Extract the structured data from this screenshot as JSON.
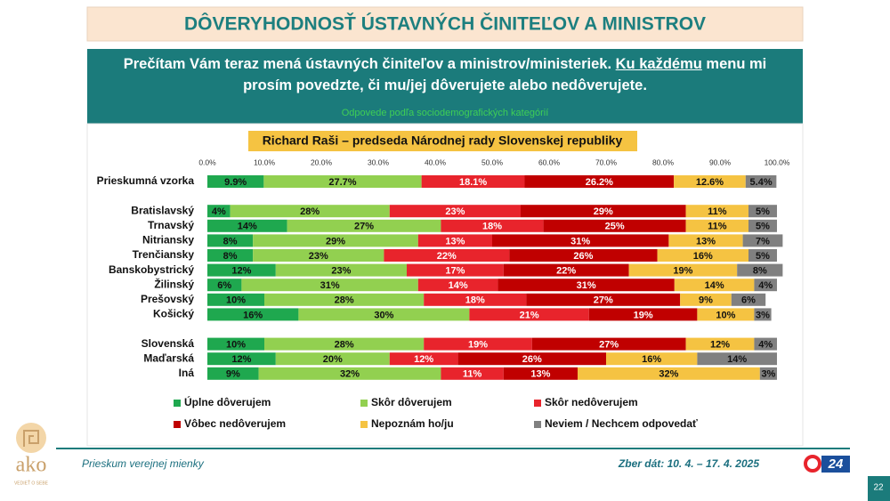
{
  "header": {
    "title": "DÔVERYHODNOSŤ ÚSTAVNÝCH ČINITEĽOV A MINISTROV"
  },
  "question": {
    "parts": [
      "Prečítam Vám teraz mená ústavných činiteľov a ministrov/ministeriek. ",
      "Ku každému",
      " menu mi prosím povedzte, či mu/jej dôverujete alebo nedôverujete."
    ]
  },
  "chart_data": {
    "type": "stacked-bar-horizontal",
    "subtitle": "Odpovede podľa sociodemografických kategórií",
    "title": "Richard Raši – predseda Národnej rady Slovenskej republiky",
    "categories": [
      "Prieskumná vzorka",
      null,
      "Bratislavský",
      "Trnavský",
      "Nitriansky",
      "Trenčiansky",
      "Banskobystrický",
      "Žilinský",
      "Prešovský",
      "Košický",
      null,
      "Slovenská",
      "Maďarská",
      "Iná"
    ],
    "xlim": [
      0,
      100
    ],
    "xticks": [
      {
        "value": 0,
        "label": "0.0%"
      },
      {
        "value": 10,
        "label": "10.0%"
      },
      {
        "value": 20,
        "label": "20.0%"
      },
      {
        "value": 30,
        "label": "30.0%"
      },
      {
        "value": 40,
        "label": "40.0%"
      },
      {
        "value": 50,
        "label": "50.0%"
      },
      {
        "value": 60,
        "label": "60.0%"
      },
      {
        "value": 70,
        "label": "70.0%"
      },
      {
        "value": 80,
        "label": "80.0%"
      },
      {
        "value": 90,
        "label": "90.0%"
      },
      {
        "value": 100,
        "label": "100.0%"
      }
    ],
    "series": [
      {
        "name": "Úplne dôverujem",
        "color": "#1fa84f",
        "values": [
          9.9,
          null,
          4,
          14,
          8,
          8,
          12,
          6,
          10,
          16,
          null,
          10,
          12,
          9
        ],
        "value_labels": [
          "9.9%",
          null,
          "4%",
          "14%",
          "8%",
          "8%",
          "12%",
          "6%",
          "10%",
          "16%",
          null,
          "10%",
          "12%",
          "9%"
        ]
      },
      {
        "name": "Skôr dôverujem",
        "color": "#92d050",
        "values": [
          27.7,
          null,
          28,
          27,
          29,
          23,
          23,
          31,
          28,
          30,
          null,
          28,
          20,
          32
        ],
        "value_labels": [
          "27.7%",
          null,
          "28%",
          "27%",
          "29%",
          "23%",
          "23%",
          "31%",
          "28%",
          "30%",
          null,
          "28%",
          "20%",
          "32%"
        ]
      },
      {
        "name": "Skôr nedôverujem",
        "color": "#e8242c",
        "values": [
          18.1,
          null,
          23,
          18,
          13,
          22,
          17,
          14,
          18,
          21,
          null,
          19,
          12,
          11
        ],
        "value_labels": [
          "18.1%",
          null,
          "23%",
          "18%",
          "13%",
          "22%",
          "17%",
          "14%",
          "18%",
          "21%",
          null,
          "19%",
          "12%",
          "11%"
        ]
      },
      {
        "name": "Vôbec nedôverujem",
        "color": "#c00000",
        "values": [
          26.2,
          null,
          29,
          25,
          31,
          26,
          22,
          31,
          27,
          19,
          null,
          27,
          26,
          13
        ],
        "value_labels": [
          "26.2%",
          null,
          "29%",
          "25%",
          "31%",
          "26%",
          "22%",
          "31%",
          "27%",
          "19%",
          null,
          "27%",
          "26%",
          "13%"
        ]
      },
      {
        "name": "Nepoznám ho/ju",
        "color": "#f5c342",
        "values": [
          12.6,
          null,
          11,
          11,
          13,
          16,
          19,
          14,
          9,
          10,
          null,
          12,
          16,
          32
        ],
        "value_labels": [
          "12.6%",
          null,
          "11%",
          "11%",
          "13%",
          "16%",
          "19%",
          "14%",
          "9%",
          "10%",
          null,
          "12%",
          "16%",
          "32%"
        ]
      },
      {
        "name": "Neviem / Nechcem odpovedať",
        "color": "#808080",
        "values": [
          5.4,
          null,
          5,
          5,
          7,
          5,
          8,
          4,
          6,
          3,
          null,
          4,
          14,
          3
        ],
        "value_labels": [
          "5.4%",
          null,
          "5%",
          "5%",
          "7%",
          "5%",
          "8%",
          "4%",
          "6%",
          "3%",
          null,
          "4%",
          "14%",
          "3%"
        ]
      }
    ]
  },
  "footer": {
    "survey": "Prieskum verejnej mienky",
    "dates": "Zber dát: 10. 4. – 17. 4. 2025",
    "page": "22",
    "logo": "ako",
    "tagline": "VEDIEŤ O SEBE",
    "badge": "24"
  }
}
